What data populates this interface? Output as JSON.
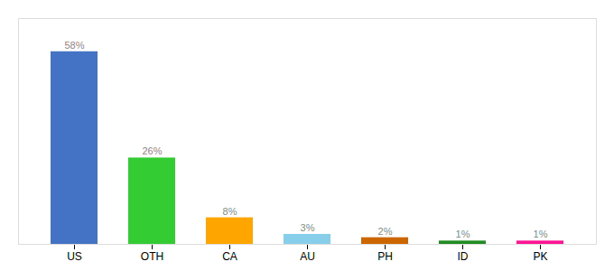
{
  "chart_data": {
    "type": "bar",
    "categories": [
      "US",
      "OTH",
      "CA",
      "AU",
      "PH",
      "ID",
      "PK"
    ],
    "values": [
      58,
      26,
      8,
      3,
      2,
      1,
      1
    ],
    "value_labels": [
      "58%",
      "26%",
      "8%",
      "3%",
      "2%",
      "1%",
      "1%"
    ],
    "colors": [
      "#4472C4",
      "#33CC33",
      "#FFA500",
      "#87CEEB",
      "#CC6600",
      "#228B22",
      "#FF1493"
    ],
    "ylim": [
      0,
      68
    ],
    "grid": false,
    "data_labels": true,
    "tick_labels": "x"
  }
}
